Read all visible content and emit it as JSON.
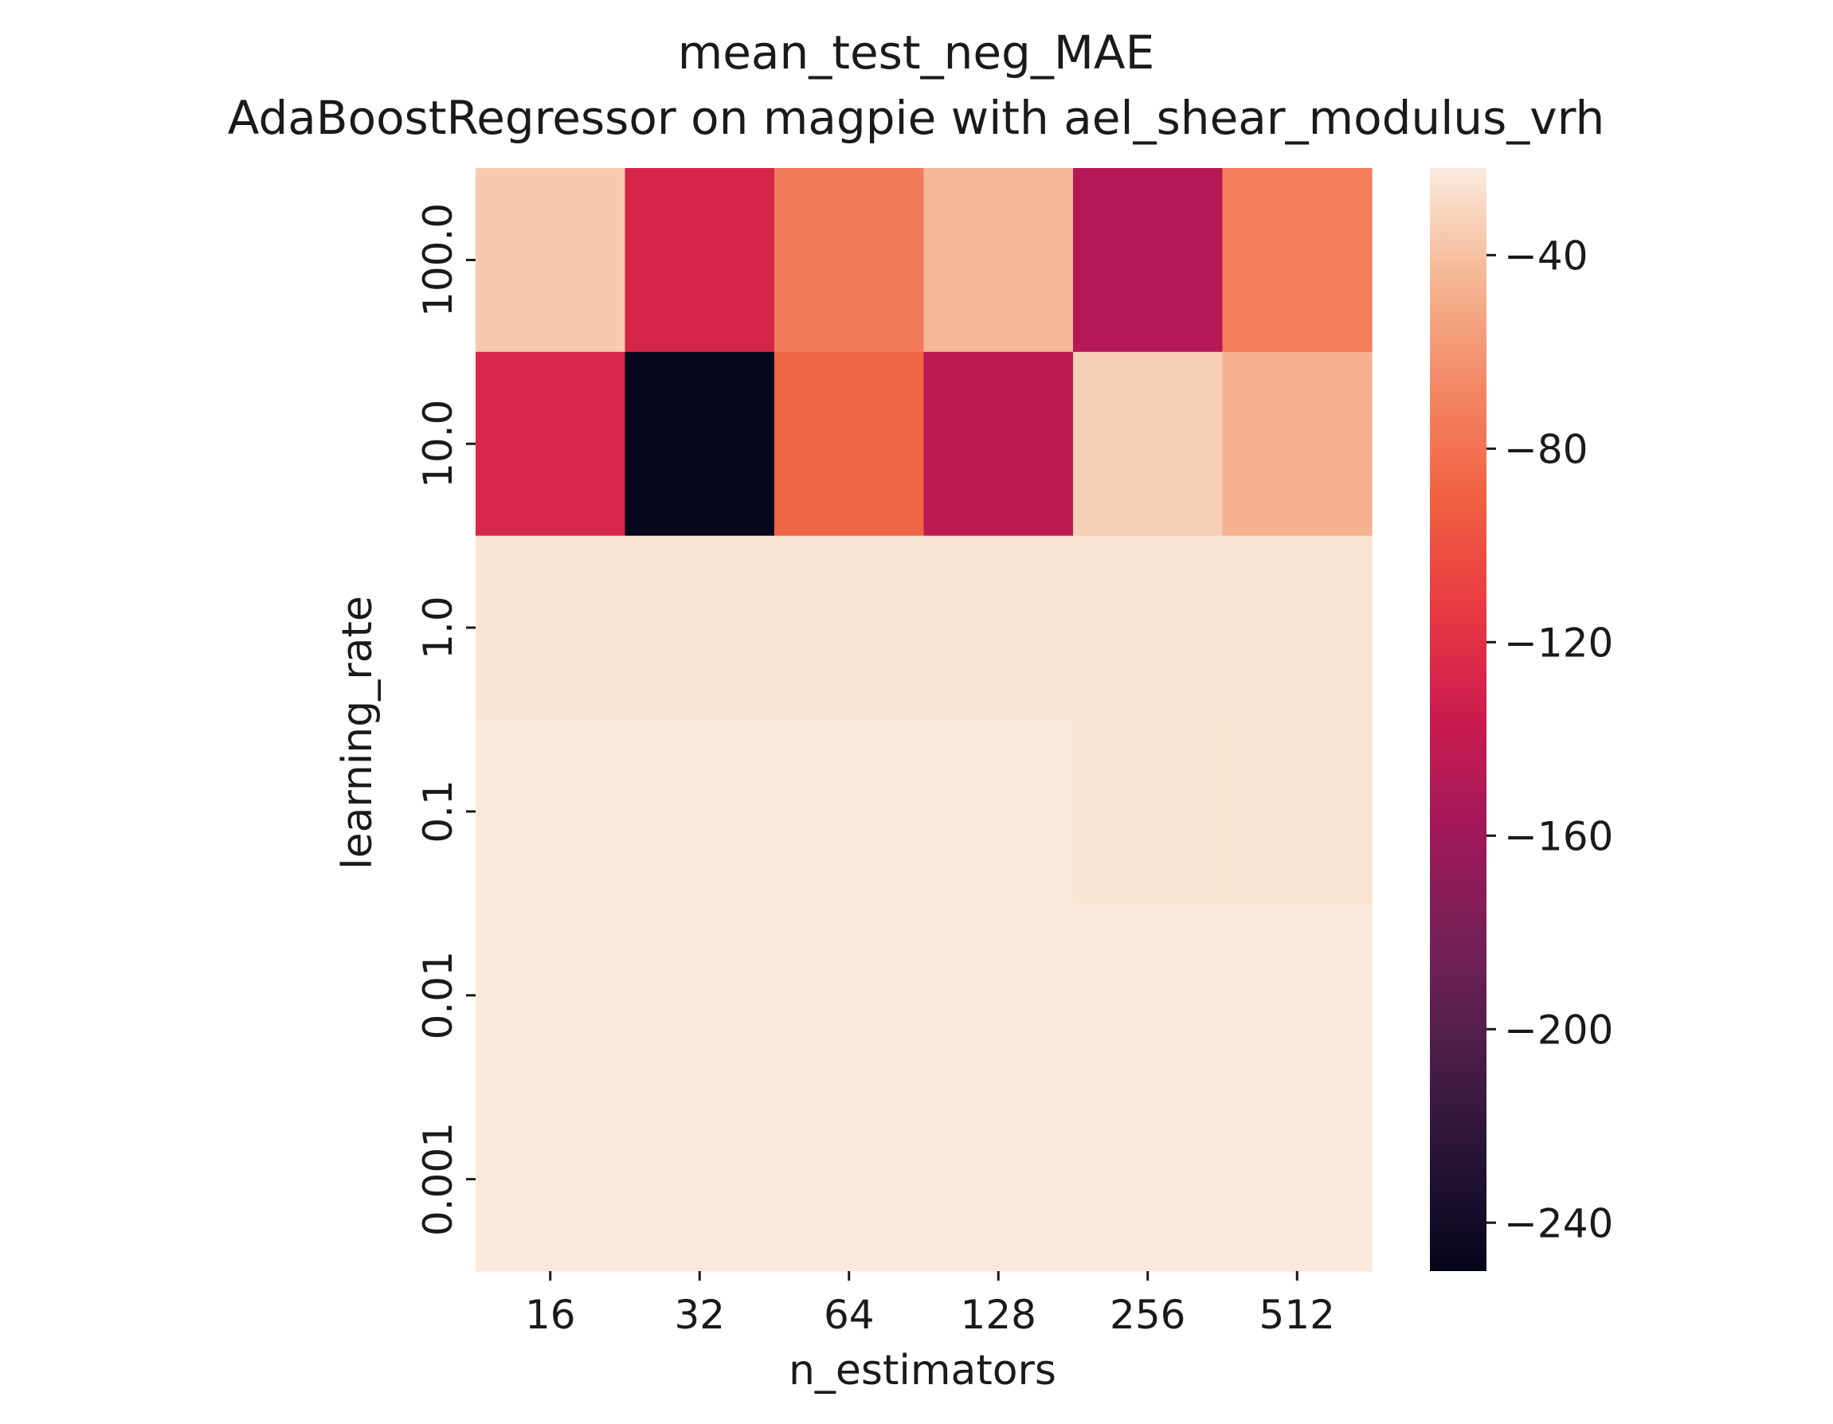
{
  "chart_data": {
    "type": "heatmap",
    "title": "mean_test_neg_MAE",
    "subtitle": "AdaBoostRegressor on magpie with ael_shear_modulus_vrh",
    "xlabel": "n_estimators",
    "ylabel": "learning_rate",
    "x_categories": [
      "16",
      "32",
      "64",
      "128",
      "256",
      "512"
    ],
    "y_categories": [
      "100.0",
      "10.0",
      "1.0",
      "0.1",
      "0.01",
      "0.001"
    ],
    "values": [
      [
        -36,
        -128,
        -75,
        -44,
        -148,
        -73
      ],
      [
        -126,
        -248,
        -88,
        -143,
        -34,
        -47
      ],
      [
        -25,
        -25,
        -26,
        -26,
        -25,
        -25
      ],
      [
        -23,
        -23,
        -23,
        -23,
        -25,
        -26
      ],
      [
        -23,
        -23,
        -23,
        -23,
        -23,
        -23
      ],
      [
        -23,
        -23,
        -23,
        -23,
        -23,
        -23
      ]
    ],
    "colorbar": {
      "min": -250,
      "max": -22,
      "ticks": [
        -40,
        -80,
        -120,
        -160,
        -200,
        -240
      ],
      "tick_labels": [
        "−40",
        "−80",
        "−120",
        "−160",
        "−200",
        "−240"
      ],
      "colormap": "rocket"
    },
    "grid": false,
    "legend": "colorbar-right"
  }
}
